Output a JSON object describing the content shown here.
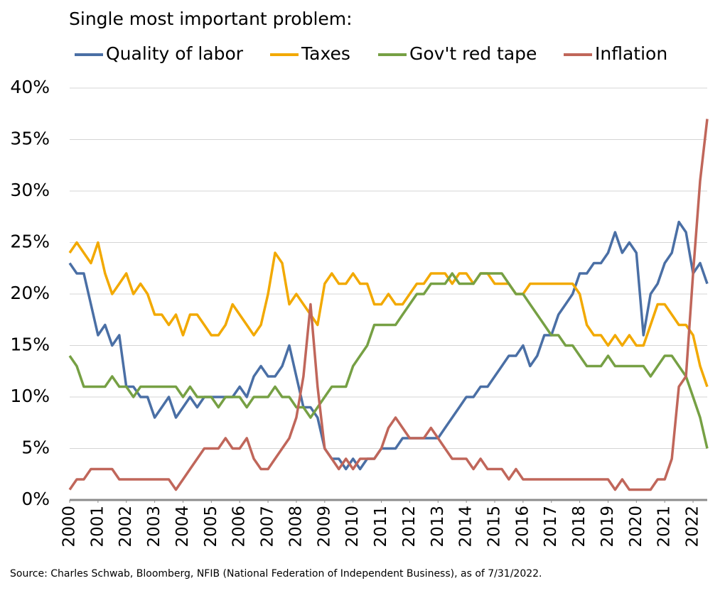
{
  "chart_data": {
    "type": "line",
    "title": "Single most important problem:",
    "source": "Source: Charles Schwab, Bloomberg, NFIB (National Federation of Independent Business), as of 7/31/2022.",
    "legend": "top",
    "grid": true,
    "x": [
      2000,
      2000.25,
      2000.5,
      2000.75,
      2001,
      2001.25,
      2001.5,
      2001.75,
      2002,
      2002.25,
      2002.5,
      2002.75,
      2003,
      2003.25,
      2003.5,
      2003.75,
      2004,
      2004.25,
      2004.5,
      2004.75,
      2005,
      2005.25,
      2005.5,
      2005.75,
      2006,
      2006.25,
      2006.5,
      2006.75,
      2007,
      2007.25,
      2007.5,
      2007.75,
      2008,
      2008.25,
      2008.5,
      2008.75,
      2009,
      2009.25,
      2009.5,
      2009.75,
      2010,
      2010.25,
      2010.5,
      2010.75,
      2011,
      2011.25,
      2011.5,
      2011.75,
      2012,
      2012.25,
      2012.5,
      2012.75,
      2013,
      2013.25,
      2013.5,
      2013.75,
      2014,
      2014.25,
      2014.5,
      2014.75,
      2015,
      2015.25,
      2015.5,
      2015.75,
      2016,
      2016.25,
      2016.5,
      2016.75,
      2017,
      2017.25,
      2017.5,
      2017.75,
      2018,
      2018.25,
      2018.5,
      2018.75,
      2019,
      2019.25,
      2019.5,
      2019.75,
      2020,
      2020.25,
      2020.5,
      2020.75,
      2021,
      2021.25,
      2021.5,
      2021.75,
      2022,
      2022.25,
      2022.5
    ],
    "xlim": [
      2000,
      2022.5
    ],
    "xticks": [
      2000,
      2001,
      2002,
      2003,
      2004,
      2005,
      2006,
      2007,
      2008,
      2009,
      2010,
      2011,
      2012,
      2013,
      2014,
      2015,
      2016,
      2017,
      2018,
      2019,
      2020,
      2021,
      2022
    ],
    "ylim": [
      0,
      40
    ],
    "yticks": [
      {
        "value": 0,
        "label": "0%"
      },
      {
        "value": 5,
        "label": "5%"
      },
      {
        "value": 10,
        "label": "10%"
      },
      {
        "value": 15,
        "label": "15%"
      },
      {
        "value": 20,
        "label": "20%"
      },
      {
        "value": 25,
        "label": "25%"
      },
      {
        "value": 30,
        "label": "30%"
      },
      {
        "value": 35,
        "label": "35%"
      },
      {
        "value": 40,
        "label": "40%"
      }
    ],
    "series": [
      {
        "name": "Quality of labor",
        "color": "#4a6fa5",
        "values": [
          23,
          22,
          22,
          19,
          16,
          17,
          15,
          16,
          11,
          11,
          10,
          10,
          8,
          9,
          10,
          8,
          9,
          10,
          9,
          10,
          10,
          10,
          10,
          10,
          11,
          10,
          12,
          13,
          12,
          12,
          13,
          15,
          12,
          9,
          9,
          8,
          5,
          4,
          4,
          3,
          4,
          3,
          4,
          4,
          5,
          5,
          5,
          6,
          6,
          6,
          6,
          6,
          6,
          7,
          8,
          9,
          10,
          10,
          11,
          11,
          12,
          13,
          14,
          14,
          15,
          13,
          14,
          16,
          16,
          18,
          19,
          20,
          22,
          22,
          23,
          23,
          24,
          26,
          24,
          25,
          24,
          16,
          20,
          21,
          23,
          24,
          27,
          26,
          22,
          23,
          21
        ]
      },
      {
        "name": "Taxes",
        "color": "#f2a900",
        "values": [
          24,
          25,
          24,
          23,
          25,
          22,
          20,
          21,
          22,
          20,
          21,
          20,
          18,
          18,
          17,
          18,
          16,
          18,
          18,
          17,
          16,
          16,
          17,
          19,
          18,
          17,
          16,
          17,
          20,
          24,
          23,
          19,
          20,
          19,
          18,
          17,
          21,
          22,
          21,
          21,
          22,
          21,
          21,
          19,
          19,
          20,
          19,
          19,
          20,
          21,
          21,
          22,
          22,
          22,
          21,
          22,
          22,
          21,
          22,
          22,
          21,
          21,
          21,
          20,
          20,
          21,
          21,
          21,
          21,
          21,
          21,
          21,
          20,
          17,
          16,
          16,
          15,
          16,
          15,
          16,
          15,
          15,
          17,
          19,
          19,
          18,
          17,
          17,
          16,
          13,
          11
        ]
      },
      {
        "name": "Gov't red tape",
        "color": "#76a044",
        "values": [
          14,
          13,
          11,
          11,
          11,
          11,
          12,
          11,
          11,
          10,
          11,
          11,
          11,
          11,
          11,
          11,
          10,
          11,
          10,
          10,
          10,
          9,
          10,
          10,
          10,
          9,
          10,
          10,
          10,
          11,
          10,
          10,
          9,
          9,
          8,
          9,
          10,
          11,
          11,
          11,
          13,
          14,
          15,
          17,
          17,
          17,
          17,
          18,
          19,
          20,
          20,
          21,
          21,
          21,
          22,
          21,
          21,
          21,
          22,
          22,
          22,
          22,
          21,
          20,
          20,
          19,
          18,
          17,
          16,
          16,
          15,
          15,
          14,
          13,
          13,
          13,
          14,
          13,
          13,
          13,
          13,
          13,
          12,
          13,
          14,
          14,
          13,
          12,
          10,
          8,
          5
        ]
      },
      {
        "name": "Inflation",
        "color": "#c0665a",
        "values": [
          1,
          2,
          2,
          3,
          3,
          3,
          3,
          2,
          2,
          2,
          2,
          2,
          2,
          2,
          2,
          1,
          2,
          3,
          4,
          5,
          5,
          5,
          6,
          5,
          5,
          6,
          4,
          3,
          3,
          4,
          5,
          6,
          8,
          12,
          19,
          11,
          5,
          4,
          3,
          4,
          3,
          4,
          4,
          4,
          5,
          7,
          8,
          7,
          6,
          6,
          6,
          7,
          6,
          5,
          4,
          4,
          4,
          3,
          4,
          3,
          3,
          3,
          2,
          3,
          2,
          2,
          2,
          2,
          2,
          2,
          2,
          2,
          2,
          2,
          2,
          2,
          2,
          1,
          2,
          1,
          1,
          1,
          1,
          2,
          2,
          4,
          11,
          12,
          22,
          31,
          37
        ]
      }
    ]
  }
}
